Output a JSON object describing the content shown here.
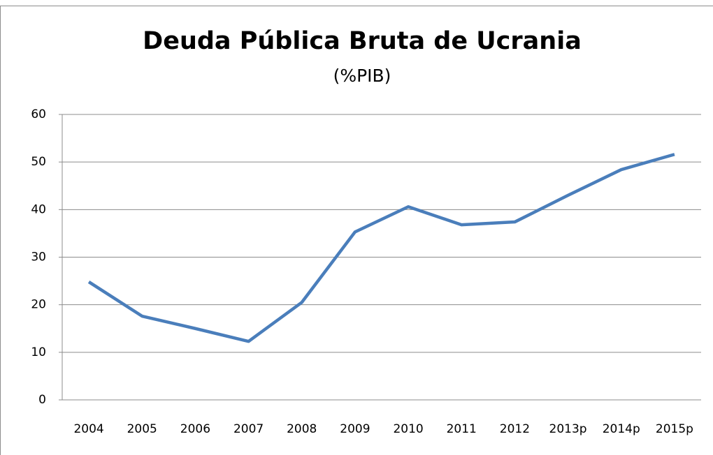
{
  "chart_data": {
    "type": "line",
    "title": "Deuda Pública Bruta de Ucrania",
    "subtitle": "(%PIB)",
    "categories": [
      "2004",
      "2005",
      "2006",
      "2007",
      "2008",
      "2009",
      "2010",
      "2011",
      "2012",
      "2013p",
      "2014p",
      "2015p"
    ],
    "series": [
      {
        "name": "Deuda Pública Bruta",
        "color": "#4a7ebb",
        "values": [
          24.8,
          17.6,
          15.0,
          12.3,
          20.5,
          35.3,
          40.6,
          36.8,
          37.4,
          43.0,
          48.4,
          51.6
        ]
      }
    ],
    "ylim": [
      0,
      60
    ],
    "yticks": [
      0,
      10,
      20,
      30,
      40,
      50,
      60
    ],
    "grid": true
  }
}
